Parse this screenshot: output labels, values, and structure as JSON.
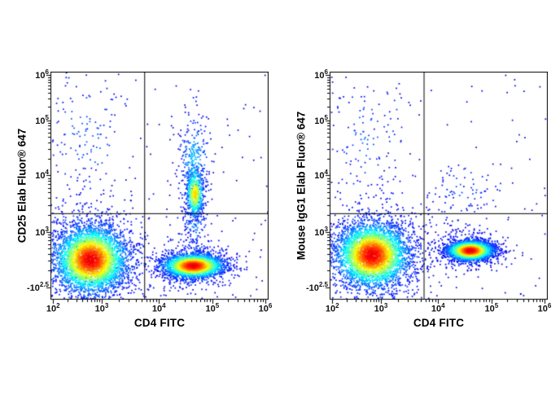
{
  "figure": {
    "background": "#ffffff",
    "border_color": "#000000",
    "quadrant_line_color": "#000000"
  },
  "chart_data": [
    {
      "type": "scatter",
      "subtype": "flow-cytometry-pseudocolor-density",
      "title": "",
      "xlabel": "CD4 FITC",
      "ylabel": "CD25 Elab Fluor® 647",
      "x_scale": "biexponential log (10^2 to 10^6)",
      "y_scale": "biexponential log (-10^2.5 to 10^6)",
      "grid": false,
      "legend": false,
      "x_ticks": [
        {
          "base": "10",
          "exp": "2",
          "frac": 0.012
        },
        {
          "base": "10",
          "exp": "3",
          "frac": 0.235
        },
        {
          "base": "10",
          "exp": "4",
          "frac": 0.497
        },
        {
          "base": "10",
          "exp": "5",
          "frac": 0.742
        },
        {
          "base": "10",
          "exp": "6",
          "frac": 0.985
        }
      ],
      "y_ticks": [
        {
          "base": "-10",
          "exp": "2.5",
          "frac": 0.055
        },
        {
          "base": "10",
          "exp": "3",
          "frac": 0.298
        },
        {
          "base": "10",
          "exp": "4",
          "frac": 0.545
        },
        {
          "base": "10",
          "exp": "5",
          "frac": 0.786
        },
        {
          "base": "10",
          "exp": "6",
          "frac": 0.985
        }
      ],
      "quadrant_gate": {
        "x_frac": 0.43,
        "y_frac": 0.379
      },
      "populations": [
        {
          "name": "cd4neg-cd25neg-core",
          "kind": "gauss",
          "cx": 0.185,
          "cy": 0.175,
          "sx": 0.085,
          "sy": 0.075,
          "count": 3600,
          "peak": 1.0
        },
        {
          "name": "cd4neg-cd25neg-halo",
          "kind": "gauss",
          "cx": 0.185,
          "cy": 0.18,
          "sx": 0.155,
          "sy": 0.14,
          "count": 700,
          "peak": 0.22
        },
        {
          "name": "cd4pos-cd25neg-core",
          "kind": "gauss",
          "cx": 0.655,
          "cy": 0.148,
          "sx": 0.072,
          "sy": 0.027,
          "count": 2400,
          "peak": 1.0
        },
        {
          "name": "cd4pos-cd25neg-halo",
          "kind": "gauss",
          "cx": 0.655,
          "cy": 0.15,
          "sx": 0.105,
          "sy": 0.06,
          "count": 420,
          "peak": 0.2
        },
        {
          "name": "cd4pos-cd25pos-comet-core",
          "kind": "gauss",
          "cx": 0.662,
          "cy": 0.465,
          "sx": 0.021,
          "sy": 0.055,
          "count": 520,
          "peak": 0.72
        },
        {
          "name": "cd4pos-cd25pos-comet-tail",
          "kind": "gauss",
          "cx": 0.659,
          "cy": 0.6,
          "sx": 0.034,
          "sy": 0.11,
          "count": 330,
          "peak": 0.28
        },
        {
          "name": "cd4pos-bridge",
          "kind": "gauss",
          "cx": 0.66,
          "cy": 0.33,
          "sx": 0.03,
          "sy": 0.07,
          "count": 120,
          "peak": 0.18
        },
        {
          "name": "upper-left-scatter",
          "kind": "gauss",
          "cx": 0.16,
          "cy": 0.72,
          "sx": 0.105,
          "sy": 0.155,
          "count": 130,
          "peak": 0.14
        },
        {
          "name": "background-noise",
          "kind": "uniform",
          "count": 140,
          "peak": 0.1
        }
      ]
    },
    {
      "type": "scatter",
      "subtype": "flow-cytometry-pseudocolor-density",
      "title": "",
      "xlabel": "CD4 FITC",
      "ylabel": "Mouse IgG1 Elab Fluor® 647",
      "x_scale": "biexponential log (10^2 to 10^6)",
      "y_scale": "biexponential log (-10^2.5 to 10^6)",
      "grid": false,
      "legend": false,
      "x_ticks": [
        {
          "base": "10",
          "exp": "2",
          "frac": 0.012
        },
        {
          "base": "10",
          "exp": "3",
          "frac": 0.235
        },
        {
          "base": "10",
          "exp": "4",
          "frac": 0.497
        },
        {
          "base": "10",
          "exp": "5",
          "frac": 0.742
        },
        {
          "base": "10",
          "exp": "6",
          "frac": 0.985
        }
      ],
      "y_ticks": [
        {
          "base": "-10",
          "exp": "2.5",
          "frac": 0.055
        },
        {
          "base": "10",
          "exp": "3",
          "frac": 0.298
        },
        {
          "base": "10",
          "exp": "4",
          "frac": 0.545
        },
        {
          "base": "10",
          "exp": "5",
          "frac": 0.786
        },
        {
          "base": "10",
          "exp": "6",
          "frac": 0.985
        }
      ],
      "quadrant_gate": {
        "x_frac": 0.431,
        "y_frac": 0.379
      },
      "populations": [
        {
          "name": "cd4neg-core",
          "kind": "gauss",
          "cx": 0.195,
          "cy": 0.195,
          "sx": 0.085,
          "sy": 0.072,
          "count": 3600,
          "peak": 1.0
        },
        {
          "name": "cd4neg-halo",
          "kind": "gauss",
          "cx": 0.195,
          "cy": 0.2,
          "sx": 0.155,
          "sy": 0.135,
          "count": 700,
          "peak": 0.22
        },
        {
          "name": "cd4pos-core",
          "kind": "gauss",
          "cx": 0.645,
          "cy": 0.215,
          "sx": 0.054,
          "sy": 0.022,
          "count": 2300,
          "peak": 1.0
        },
        {
          "name": "cd4pos-halo",
          "kind": "gauss",
          "cx": 0.645,
          "cy": 0.215,
          "sx": 0.082,
          "sy": 0.045,
          "count": 380,
          "peak": 0.2
        },
        {
          "name": "upper-left-scatter",
          "kind": "gauss",
          "cx": 0.17,
          "cy": 0.7,
          "sx": 0.105,
          "sy": 0.15,
          "count": 110,
          "peak": 0.13
        },
        {
          "name": "upper-mid-scatter",
          "kind": "gauss",
          "cx": 0.62,
          "cy": 0.47,
          "sx": 0.09,
          "sy": 0.08,
          "count": 80,
          "peak": 0.12
        },
        {
          "name": "background-noise",
          "kind": "uniform",
          "count": 120,
          "peak": 0.1
        }
      ]
    }
  ]
}
